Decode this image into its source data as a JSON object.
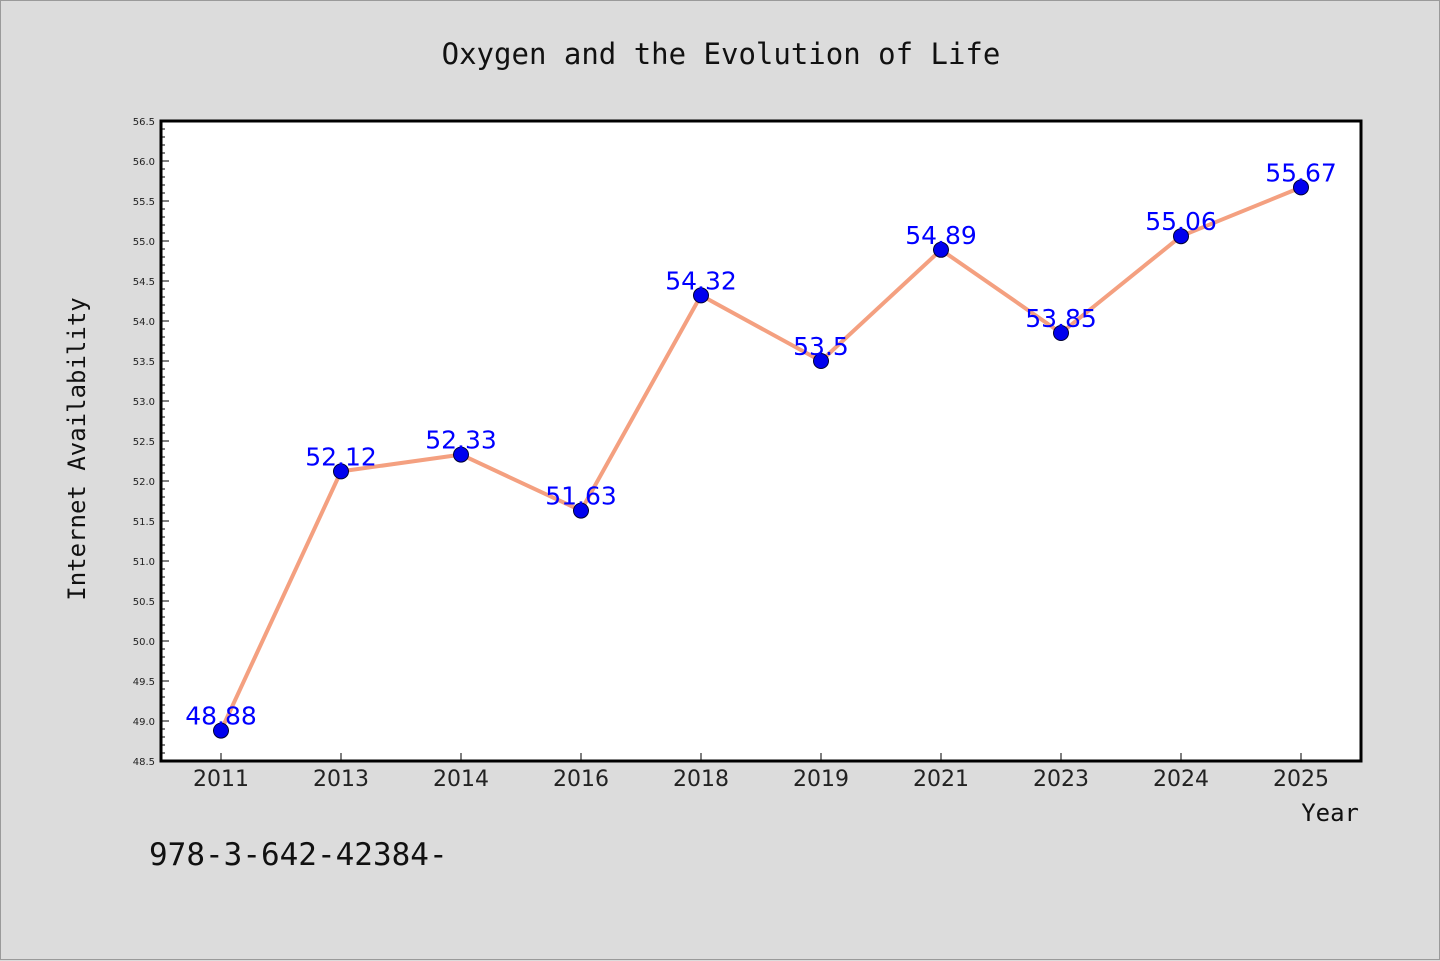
{
  "chart_data": {
    "type": "line",
    "title": "Oxygen and the Evolution of Life",
    "xlabel": "Year",
    "ylabel": "Internet Availability",
    "categories": [
      "2011",
      "2013",
      "2014",
      "2016",
      "2018",
      "2019",
      "2021",
      "2023",
      "2024",
      "2025"
    ],
    "values": [
      48.88,
      52.12,
      52.33,
      51.63,
      54.32,
      53.5,
      54.89,
      53.85,
      55.06,
      55.67
    ],
    "data_labels": [
      "48.88",
      "52.12",
      "52.33",
      "51.63",
      "54.32",
      "53.5",
      "54.89",
      "53.85",
      "55.06",
      "55.67"
    ],
    "ylim": [
      48.5,
      56.5
    ],
    "yticks": [
      "48.5",
      "49.0",
      "49.5",
      "50.0",
      "50.5",
      "51.0",
      "51.5",
      "52.0",
      "52.5",
      "53.0",
      "53.5",
      "54.0",
      "54.5",
      "55.0",
      "55.5",
      "56.0",
      "56.5"
    ],
    "grid": false,
    "line_color": "#f4a080",
    "marker_color": "#0000ee",
    "label_color": "#0000ff",
    "background_color": "#dcdcdc",
    "plot_background": "#ffffff"
  },
  "footnote": "978-3-642-42384-"
}
